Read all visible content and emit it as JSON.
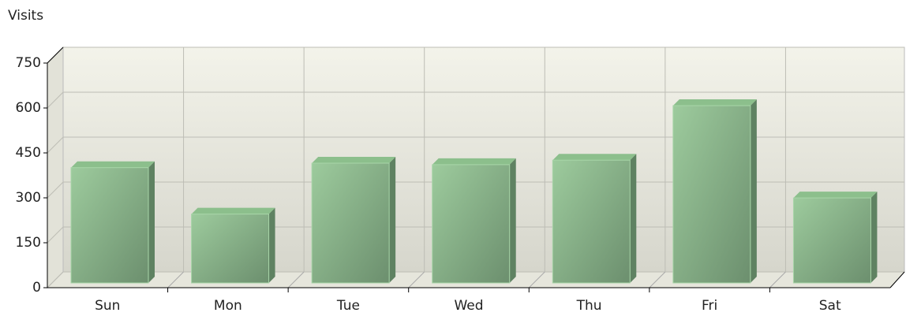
{
  "chart_data": {
    "type": "bar",
    "y_axis_label": "Visits",
    "categories": [
      "Sun",
      "Mon",
      "Tue",
      "Wed",
      "Thu",
      "Fri",
      "Sat"
    ],
    "values": [
      385,
      230,
      400,
      395,
      410,
      592,
      284
    ],
    "color": "#8cbf8c",
    "ylim": [
      0,
      750
    ],
    "yticks": [
      0,
      150,
      300,
      450,
      600,
      750
    ],
    "grid": true
  }
}
